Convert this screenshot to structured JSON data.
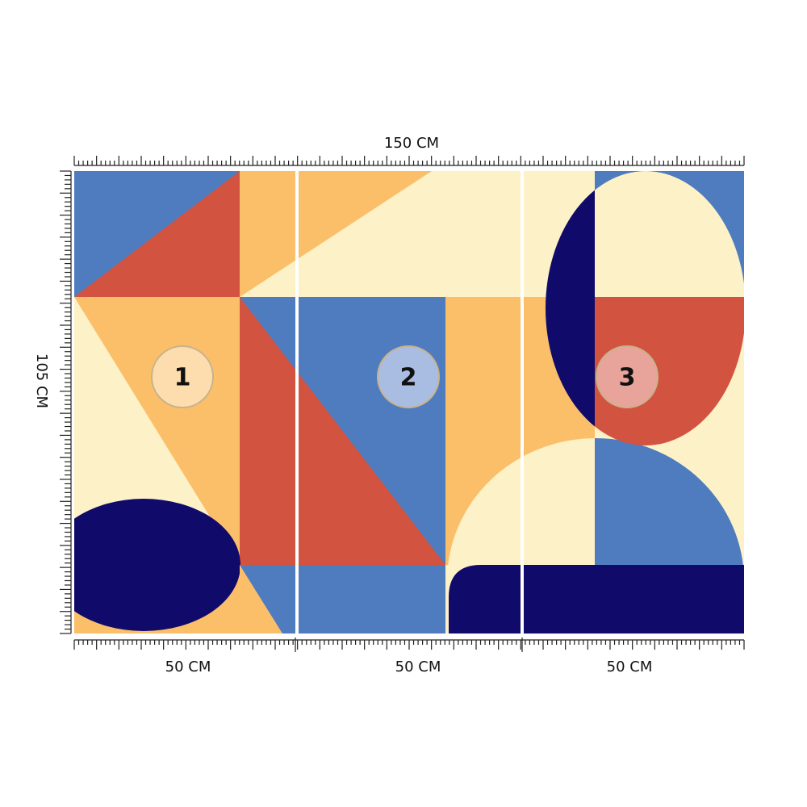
{
  "dimensions": {
    "width": "150 CM",
    "height": "105 CM",
    "panels": [
      "50 CM",
      "50 CM",
      "50 CM"
    ]
  },
  "panels": [
    {
      "label": "1"
    },
    {
      "label": "2"
    },
    {
      "label": "3"
    }
  ]
}
